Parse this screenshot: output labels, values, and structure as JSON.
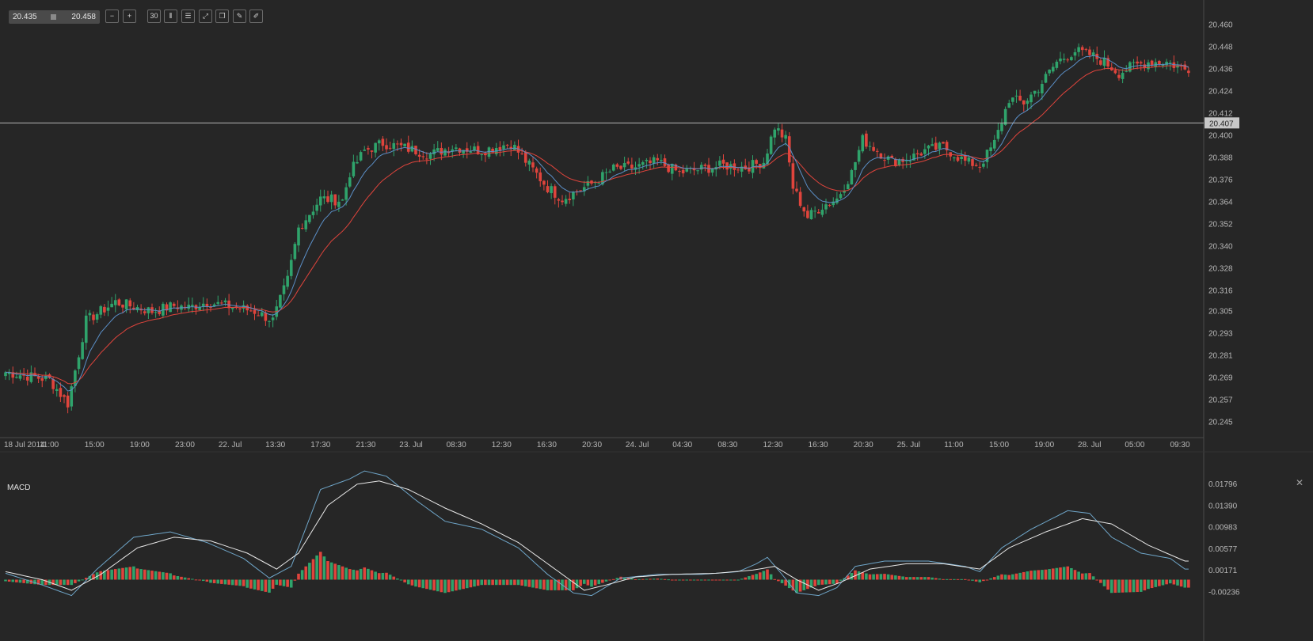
{
  "toolbar": {
    "range_from": "20.435",
    "range_to": "20.458",
    "buttons": [
      {
        "name": "zoom-out-icon",
        "glyph": "−"
      },
      {
        "name": "zoom-in-icon",
        "glyph": "+"
      },
      {
        "name": "timeframe-button",
        "glyph": "30"
      },
      {
        "name": "candles-icon",
        "glyph": "⫴"
      },
      {
        "name": "indicators-icon",
        "glyph": "☰"
      },
      {
        "name": "drawing-icon",
        "glyph": "⤢"
      },
      {
        "name": "layers-icon",
        "glyph": "❐"
      },
      {
        "name": "pencil-icon",
        "glyph": "✎"
      },
      {
        "name": "brush-icon",
        "glyph": "✐"
      }
    ]
  },
  "colors": {
    "background": "#262626",
    "up": "#2fa36b",
    "down": "#e0443c",
    "ema_fast": "#5b8fc7",
    "ema_slow": "#e0443c",
    "macd_line": "#6fa6c9",
    "signal_line": "#e8e8e8",
    "grid_axis": "#4a4a4a",
    "price_marker": "#c8c8c8"
  },
  "chart_data": [
    {
      "type": "candlestick",
      "title": "",
      "y_ticks": [
        "20.460",
        "20.448",
        "20.436",
        "20.424",
        "20.412",
        "20.400",
        "20.388",
        "20.376",
        "20.364",
        "20.352",
        "20.340",
        "20.328",
        "20.316",
        "20.305",
        "20.293",
        "20.281",
        "20.269",
        "20.257",
        "20.245"
      ],
      "ylim": [
        20.237,
        20.465
      ],
      "x_ticks": [
        "18 Jul 2014",
        "11:00",
        "15:00",
        "19:00",
        "23:00",
        "22. Jul",
        "13:30",
        "17:30",
        "21:30",
        "23. Jul",
        "08:30",
        "12:30",
        "16:30",
        "20:30",
        "24. Jul",
        "04:30",
        "08:30",
        "12:30",
        "16:30",
        "20:30",
        "25. Jul",
        "11:00",
        "15:00",
        "19:00",
        "28. Jul",
        "05:00",
        "09:30"
      ],
      "current_price": "20.407",
      "overlays": [
        "EMA fast",
        "EMA slow"
      ],
      "close_anchors": [
        [
          0,
          20.272
        ],
        [
          12,
          20.268
        ],
        [
          17,
          20.255
        ],
        [
          22,
          20.3
        ],
        [
          30,
          20.31
        ],
        [
          40,
          20.305
        ],
        [
          46,
          20.308
        ],
        [
          50,
          20.307
        ],
        [
          55,
          20.31
        ],
        [
          63,
          20.307
        ],
        [
          68,
          20.305
        ],
        [
          73,
          20.3
        ],
        [
          77,
          20.322
        ],
        [
          80,
          20.35
        ],
        [
          86,
          20.366
        ],
        [
          92,
          20.365
        ],
        [
          94,
          20.38
        ],
        [
          98,
          20.392
        ],
        [
          103,
          20.396
        ],
        [
          108,
          20.394
        ],
        [
          116,
          20.39
        ],
        [
          122,
          20.394
        ],
        [
          130,
          20.392
        ],
        [
          138,
          20.396
        ],
        [
          143,
          20.384
        ],
        [
          148,
          20.372
        ],
        [
          152,
          20.366
        ],
        [
          160,
          20.374
        ],
        [
          166,
          20.382
        ],
        [
          172,
          20.383
        ],
        [
          178,
          20.386
        ],
        [
          184,
          20.38
        ],
        [
          190,
          20.382
        ],
        [
          196,
          20.384
        ],
        [
          202,
          20.383
        ],
        [
          207,
          20.386
        ],
        [
          210,
          20.405
        ],
        [
          213,
          20.398
        ],
        [
          215,
          20.372
        ],
        [
          219,
          20.356
        ],
        [
          223,
          20.362
        ],
        [
          227,
          20.366
        ],
        [
          231,
          20.38
        ],
        [
          234,
          20.398
        ],
        [
          238,
          20.392
        ],
        [
          242,
          20.386
        ],
        [
          247,
          20.388
        ],
        [
          251,
          20.392
        ],
        [
          256,
          20.394
        ],
        [
          262,
          20.386
        ],
        [
          266,
          20.384
        ],
        [
          270,
          20.396
        ],
        [
          274,
          20.42
        ],
        [
          278,
          20.418
        ],
        [
          282,
          20.426
        ],
        [
          287,
          20.44
        ],
        [
          292,
          20.446
        ],
        [
          296,
          20.444
        ],
        [
          300,
          20.44
        ],
        [
          304,
          20.434
        ],
        [
          308,
          20.438
        ],
        [
          312,
          20.44
        ],
        [
          317,
          20.44
        ],
        [
          322,
          20.436
        ]
      ]
    },
    {
      "type": "bar+line",
      "title": "MACD",
      "y_ticks": [
        "0.01796",
        "0.01390",
        "0.00983",
        "0.00577",
        "0.00171",
        "-0.00236"
      ],
      "ylim": [
        -0.005,
        0.022
      ],
      "series_names": [
        "MACD",
        "Signal",
        "Histogram"
      ],
      "macd_anchors": [
        [
          0,
          0.0012
        ],
        [
          10,
          -0.001
        ],
        [
          18,
          -0.003
        ],
        [
          25,
          0.002
        ],
        [
          35,
          0.008
        ],
        [
          45,
          0.009
        ],
        [
          55,
          0.007
        ],
        [
          65,
          0.004
        ],
        [
          72,
          0.0003
        ],
        [
          78,
          0.0025
        ],
        [
          86,
          0.017
        ],
        [
          94,
          0.019
        ],
        [
          98,
          0.0205
        ],
        [
          104,
          0.0195
        ],
        [
          112,
          0.015
        ],
        [
          120,
          0.011
        ],
        [
          130,
          0.0095
        ],
        [
          140,
          0.006
        ],
        [
          148,
          0.001
        ],
        [
          155,
          -0.0025
        ],
        [
          160,
          -0.003
        ],
        [
          168,
          0.0003
        ],
        [
          178,
          0.001
        ],
        [
          190,
          0.001
        ],
        [
          200,
          0.0015
        ],
        [
          205,
          0.003
        ],
        [
          208,
          0.0042
        ],
        [
          212,
          0.001
        ],
        [
          216,
          -0.0025
        ],
        [
          222,
          -0.003
        ],
        [
          227,
          -0.0015
        ],
        [
          232,
          0.0025
        ],
        [
          240,
          0.0035
        ],
        [
          252,
          0.0035
        ],
        [
          262,
          0.0025
        ],
        [
          266,
          0.0015
        ],
        [
          272,
          0.006
        ],
        [
          280,
          0.0095
        ],
        [
          290,
          0.013
        ],
        [
          296,
          0.0125
        ],
        [
          302,
          0.008
        ],
        [
          310,
          0.005
        ],
        [
          318,
          0.004
        ],
        [
          322,
          0.002
        ]
      ],
      "signal_anchors": [
        [
          0,
          0.0015
        ],
        [
          10,
          0.0
        ],
        [
          18,
          -0.002
        ],
        [
          26,
          0.001
        ],
        [
          36,
          0.006
        ],
        [
          46,
          0.008
        ],
        [
          56,
          0.0073
        ],
        [
          66,
          0.005
        ],
        [
          74,
          0.002
        ],
        [
          80,
          0.005
        ],
        [
          88,
          0.014
        ],
        [
          96,
          0.018
        ],
        [
          102,
          0.0186
        ],
        [
          110,
          0.017
        ],
        [
          120,
          0.0135
        ],
        [
          130,
          0.0105
        ],
        [
          140,
          0.007
        ],
        [
          150,
          0.002
        ],
        [
          158,
          -0.002
        ],
        [
          164,
          -0.001
        ],
        [
          172,
          0.0005
        ],
        [
          182,
          0.001
        ],
        [
          194,
          0.0012
        ],
        [
          204,
          0.0018
        ],
        [
          210,
          0.0025
        ],
        [
          216,
          0.0
        ],
        [
          222,
          -0.002
        ],
        [
          228,
          -0.0005
        ],
        [
          236,
          0.002
        ],
        [
          246,
          0.003
        ],
        [
          256,
          0.003
        ],
        [
          266,
          0.002
        ],
        [
          274,
          0.006
        ],
        [
          284,
          0.009
        ],
        [
          294,
          0.0115
        ],
        [
          302,
          0.0105
        ],
        [
          312,
          0.0065
        ],
        [
          322,
          0.0035
        ]
      ]
    }
  ],
  "macd_panel": {
    "title": "MACD",
    "close_glyph": "✕"
  }
}
